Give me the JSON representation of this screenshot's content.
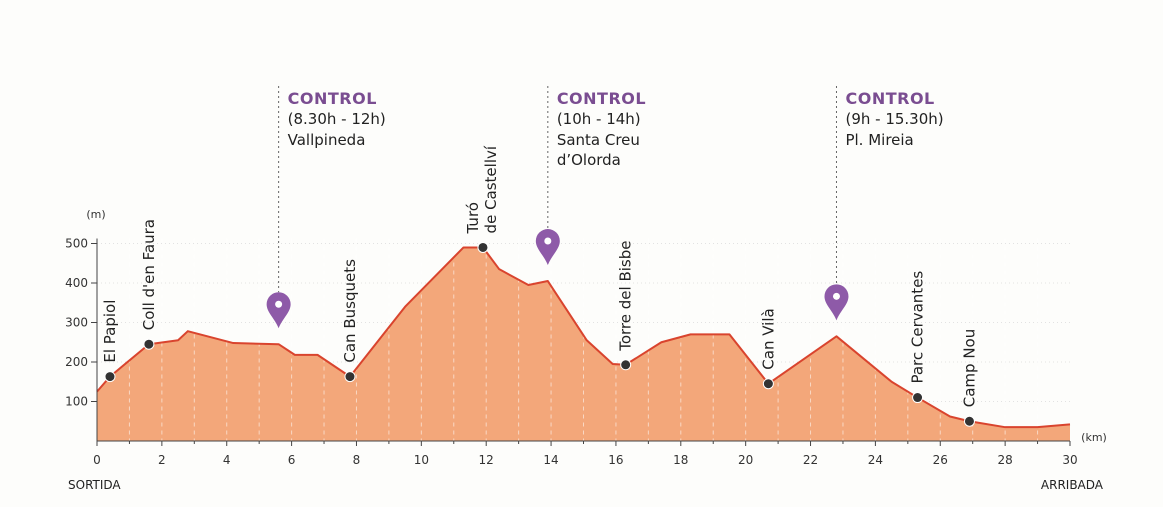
{
  "chart_data": {
    "type": "area",
    "xlabel": "(km)",
    "ylabel": "(m)",
    "xlim": [
      0,
      30
    ],
    "ylim": [
      0,
      500
    ],
    "x_ticks": [
      0,
      2,
      4,
      6,
      8,
      10,
      12,
      14,
      16,
      18,
      20,
      22,
      24,
      26,
      28,
      30
    ],
    "y_ticks": [
      100,
      200,
      300,
      400,
      500
    ],
    "start_label": "SORTIDA",
    "end_label": "ARRIBADA",
    "profile": [
      {
        "x": 0,
        "y": 125
      },
      {
        "x": 0.4,
        "y": 163
      },
      {
        "x": 1.6,
        "y": 245
      },
      {
        "x": 2.5,
        "y": 255
      },
      {
        "x": 2.8,
        "y": 278
      },
      {
        "x": 4.2,
        "y": 248
      },
      {
        "x": 5.6,
        "y": 245
      },
      {
        "x": 6.1,
        "y": 218
      },
      {
        "x": 6.8,
        "y": 218
      },
      {
        "x": 7.8,
        "y": 163
      },
      {
        "x": 9.5,
        "y": 340
      },
      {
        "x": 11.3,
        "y": 490
      },
      {
        "x": 11.9,
        "y": 490
      },
      {
        "x": 12.4,
        "y": 435
      },
      {
        "x": 13.3,
        "y": 395
      },
      {
        "x": 13.9,
        "y": 405
      },
      {
        "x": 15.1,
        "y": 255
      },
      {
        "x": 15.9,
        "y": 195
      },
      {
        "x": 16.3,
        "y": 193
      },
      {
        "x": 17.4,
        "y": 250
      },
      {
        "x": 18.3,
        "y": 270
      },
      {
        "x": 19.5,
        "y": 270
      },
      {
        "x": 20.7,
        "y": 145
      },
      {
        "x": 22.8,
        "y": 265
      },
      {
        "x": 24.5,
        "y": 150
      },
      {
        "x": 25.3,
        "y": 110
      },
      {
        "x": 26.3,
        "y": 62
      },
      {
        "x": 26.9,
        "y": 50
      },
      {
        "x": 28,
        "y": 35
      },
      {
        "x": 29,
        "y": 35
      },
      {
        "x": 30,
        "y": 42
      }
    ],
    "waypoints": [
      {
        "name": "El Papiol",
        "x": 0.4,
        "y": 163
      },
      {
        "name": "Coll d'en Faura",
        "x": 1.6,
        "y": 245
      },
      {
        "name": "Can Busquets",
        "x": 7.8,
        "y": 163
      },
      {
        "name": "Turó",
        "name2": "de Castellví",
        "x": 11.9,
        "y": 490
      },
      {
        "name": "Torre del Bisbe",
        "x": 16.3,
        "y": 193
      },
      {
        "name": "Can Vilà",
        "x": 20.7,
        "y": 145
      },
      {
        "name": "Parc Cervantes",
        "x": 25.3,
        "y": 110
      },
      {
        "name": "Camp Nou",
        "x": 26.9,
        "y": 50
      }
    ],
    "controls": [
      {
        "title": "CONTROL",
        "hours": "(8.30h - 12h)",
        "place": [
          "Vallpineda"
        ],
        "x": 5.6,
        "y": 245
      },
      {
        "title": "CONTROL",
        "hours": "(10h - 14h)",
        "place": [
          "Santa Creu",
          "d’Olorda"
        ],
        "x": 13.9,
        "y": 405
      },
      {
        "title": "CONTROL",
        "hours": "(9h - 15.30h)",
        "place": [
          "Pl. Mireia"
        ],
        "x": 22.8,
        "y": 265
      }
    ],
    "colors": {
      "fill": "#f3a77a",
      "line": "#d9442e",
      "marker": "#333333",
      "pin": "#8e5aa8",
      "axis": "#444444",
      "grid": "#e8d4c6"
    }
  }
}
